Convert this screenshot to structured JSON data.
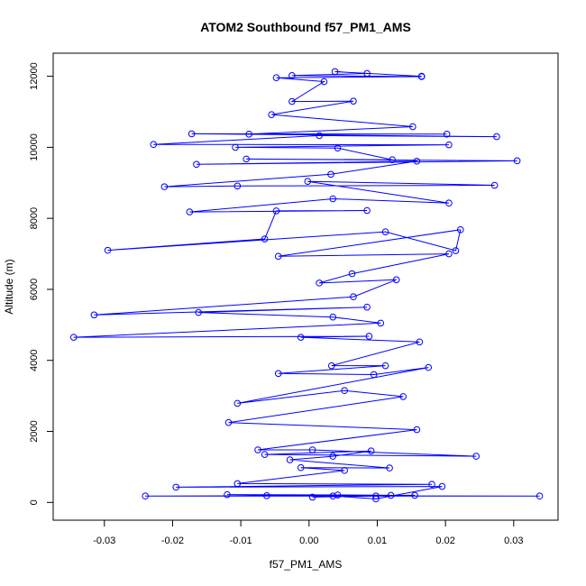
{
  "chart_data": {
    "type": "line",
    "title": "ATOM2 Southbound f57_PM1_AMS",
    "xlabel": "f57_PM1_AMS",
    "ylabel": "Altitude (m)",
    "xlim": [
      -0.0375,
      0.0365
    ],
    "ylim": [
      -500,
      12650
    ],
    "xticks": [
      -0.03,
      -0.02,
      -0.01,
      0.0,
      0.01,
      0.02,
      0.03
    ],
    "xtick_labels": [
      "-0.03",
      "-0.02",
      "-0.01",
      "0.00",
      "0.01",
      "0.02",
      "0.03"
    ],
    "yticks": [
      0,
      2000,
      4000,
      6000,
      8000,
      10000,
      12000
    ],
    "ytick_labels": [
      "0",
      "2000",
      "4000",
      "6000",
      "8000",
      "10000",
      "12000"
    ],
    "series_color": "#0000ff",
    "marker": "open-circle",
    "grid": false,
    "series": [
      {
        "points": [
          [
            0.0005,
            150
          ],
          [
            0.0098,
            180
          ],
          [
            0.0155,
            200
          ],
          [
            -0.024,
            180
          ],
          [
            0.0338,
            180
          ],
          [
            -0.0062,
            190
          ],
          [
            0.012,
            200
          ],
          [
            0.0042,
            210
          ],
          [
            -0.012,
            220
          ],
          [
            0.0035,
            180
          ],
          [
            0.0098,
            100
          ],
          [
            0.0195,
            450
          ],
          [
            -0.0195,
            430
          ],
          [
            0.018,
            510
          ],
          [
            -0.0105,
            530
          ],
          [
            0.0052,
            900
          ],
          [
            -0.0012,
            980
          ],
          [
            0.0118,
            970
          ],
          [
            -0.0028,
            1200
          ],
          [
            0.0035,
            1300
          ],
          [
            0.0091,
            1450
          ],
          [
            -0.0065,
            1350
          ],
          [
            0.0245,
            1300
          ],
          [
            0.0005,
            1480
          ],
          [
            -0.0075,
            1480
          ],
          [
            0.0158,
            2050
          ],
          [
            -0.0118,
            2250
          ],
          [
            0.0138,
            2980
          ],
          [
            0.0052,
            3150
          ],
          [
            -0.0105,
            2790
          ],
          [
            0.0175,
            3800
          ],
          [
            0.0095,
            3600
          ],
          [
            -0.0045,
            3630
          ],
          [
            0.0112,
            3850
          ],
          [
            0.0033,
            3850
          ],
          [
            0.0162,
            4520
          ],
          [
            -0.0012,
            4650
          ],
          [
            0.0088,
            4680
          ],
          [
            -0.0345,
            4650
          ],
          [
            0.0105,
            5050
          ],
          [
            0.0035,
            5220
          ],
          [
            -0.0162,
            5350
          ],
          [
            0.0085,
            5500
          ],
          [
            -0.0315,
            5280
          ],
          [
            0.0065,
            5790
          ],
          [
            0.0128,
            6270
          ],
          [
            0.0015,
            6180
          ],
          [
            0.0063,
            6440
          ],
          [
            0.0205,
            7000
          ],
          [
            -0.0045,
            6930
          ],
          [
            0.0222,
            7680
          ],
          [
            0.0215,
            7090
          ],
          [
            0.0112,
            7620
          ],
          [
            -0.0295,
            7100
          ],
          [
            -0.0065,
            7420
          ],
          [
            -0.0048,
            8210
          ],
          [
            0.0085,
            8220
          ],
          [
            -0.0175,
            8180
          ],
          [
            0.0035,
            8550
          ],
          [
            0.0205,
            8430
          ],
          [
            -0.0002,
            9040
          ],
          [
            0.0272,
            8930
          ],
          [
            -0.0105,
            8910
          ],
          [
            -0.0212,
            8890
          ],
          [
            0.0032,
            9240
          ],
          [
            0.0158,
            9610
          ],
          [
            -0.0165,
            9520
          ],
          [
            0.0305,
            9620
          ],
          [
            -0.0092,
            9670
          ],
          [
            0.0122,
            9650
          ],
          [
            0.0042,
            9980
          ],
          [
            -0.0108,
            10000
          ],
          [
            0.0205,
            10070
          ],
          [
            -0.0228,
            10080
          ],
          [
            0.0015,
            10330
          ],
          [
            0.0275,
            10300
          ],
          [
            -0.0172,
            10380
          ],
          [
            0.0202,
            10370
          ],
          [
            -0.0088,
            10370
          ],
          [
            0.0152,
            10580
          ],
          [
            -0.0055,
            10920
          ],
          [
            0.0065,
            11300
          ],
          [
            -0.0025,
            11290
          ],
          [
            0.0022,
            11850
          ],
          [
            -0.0048,
            11960
          ],
          [
            0.0165,
            11990
          ],
          [
            -0.0025,
            12020
          ],
          [
            0.0085,
            12080
          ],
          [
            0.0038,
            12130
          ],
          [
            0.0165,
            12000
          ]
        ]
      }
    ]
  }
}
